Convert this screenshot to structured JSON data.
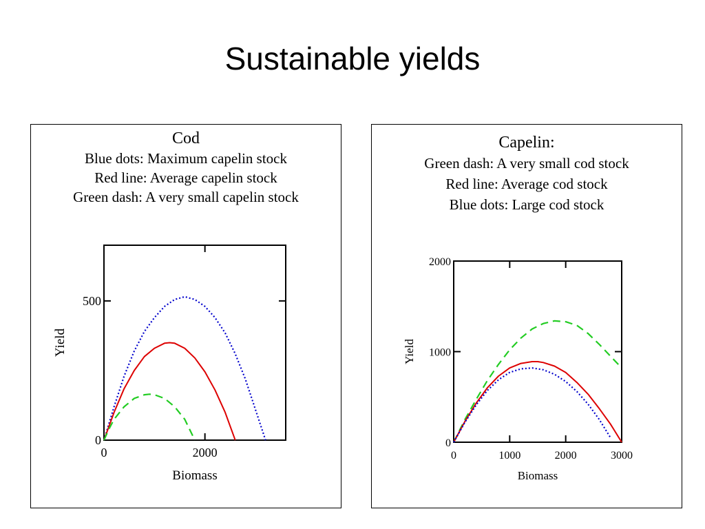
{
  "slide": {
    "title": "Sustainable yields"
  },
  "chart_data": [
    {
      "type": "line",
      "title": "Cod",
      "subtitle": [
        "Blue dots: Maximum capelin stock",
        "Red line: Average capelin stock",
        "Green dash: A very small capelin stock"
      ],
      "xlabel": "Biomass",
      "ylabel": "Yield",
      "xlim": [
        0,
        3600
      ],
      "ylim": [
        0,
        700
      ],
      "x_ticks": [
        0,
        2000
      ],
      "y_ticks": [
        0,
        500
      ],
      "grid": false,
      "series": [
        {
          "color": "#0000cc",
          "style": "dotted",
          "x": [
            0,
            200,
            400,
            600,
            800,
            1000,
            1200,
            1400,
            1600,
            1800,
            2000,
            2200,
            2400,
            2600,
            2800,
            3000,
            3200
          ],
          "y": [
            0,
            120,
            230,
            320,
            390,
            440,
            480,
            505,
            515,
            505,
            480,
            440,
            385,
            310,
            220,
            110,
            0
          ]
        },
        {
          "color": "#dd0000",
          "style": "solid",
          "x": [
            0,
            200,
            400,
            600,
            800,
            1000,
            1200,
            1300,
            1400,
            1600,
            1800,
            2000,
            2200,
            2400,
            2600
          ],
          "y": [
            0,
            100,
            185,
            250,
            300,
            330,
            348,
            350,
            348,
            330,
            295,
            245,
            180,
            100,
            0
          ]
        },
        {
          "color": "#22cc22",
          "style": "dashed",
          "x": [
            0,
            100,
            200,
            400,
            600,
            800,
            900,
            1000,
            1200,
            1400,
            1600,
            1800
          ],
          "y": [
            0,
            40,
            75,
            120,
            150,
            163,
            165,
            163,
            150,
            120,
            75,
            0
          ]
        }
      ]
    },
    {
      "type": "line",
      "title": "Capelin:",
      "subtitle": [
        "Green dash: A very small cod stock",
        "Red line: Average cod stock",
        "Blue dots: Large cod stock"
      ],
      "xlabel": "Biomass",
      "ylabel": "Yield",
      "xlim": [
        0,
        3000
      ],
      "ylim": [
        0,
        2000
      ],
      "x_ticks": [
        0,
        1000,
        2000,
        3000
      ],
      "y_ticks": [
        0,
        1000,
        2000
      ],
      "grid": false,
      "series": [
        {
          "color": "#22cc22",
          "style": "dashed",
          "x": [
            0,
            200,
            400,
            600,
            800,
            1000,
            1200,
            1400,
            1600,
            1800,
            2000,
            2200,
            2400,
            2600,
            2800,
            3000
          ],
          "y": [
            0,
            250,
            470,
            680,
            860,
            1020,
            1150,
            1250,
            1310,
            1340,
            1330,
            1290,
            1200,
            1080,
            950,
            820
          ]
        },
        {
          "color": "#dd0000",
          "style": "solid",
          "x": [
            0,
            200,
            400,
            600,
            800,
            1000,
            1200,
            1400,
            1500,
            1600,
            1800,
            2000,
            2200,
            2400,
            2600,
            2800,
            3000
          ],
          "y": [
            0,
            230,
            430,
            600,
            730,
            820,
            870,
            890,
            890,
            880,
            840,
            770,
            660,
            530,
            370,
            200,
            0
          ]
        },
        {
          "color": "#0000cc",
          "style": "dotted",
          "x": [
            0,
            200,
            400,
            600,
            800,
            1000,
            1200,
            1400,
            1600,
            1800,
            2000,
            2200,
            2400,
            2600,
            2800
          ],
          "y": [
            0,
            220,
            410,
            570,
            690,
            770,
            810,
            820,
            800,
            750,
            670,
            560,
            420,
            250,
            50
          ]
        }
      ]
    }
  ]
}
